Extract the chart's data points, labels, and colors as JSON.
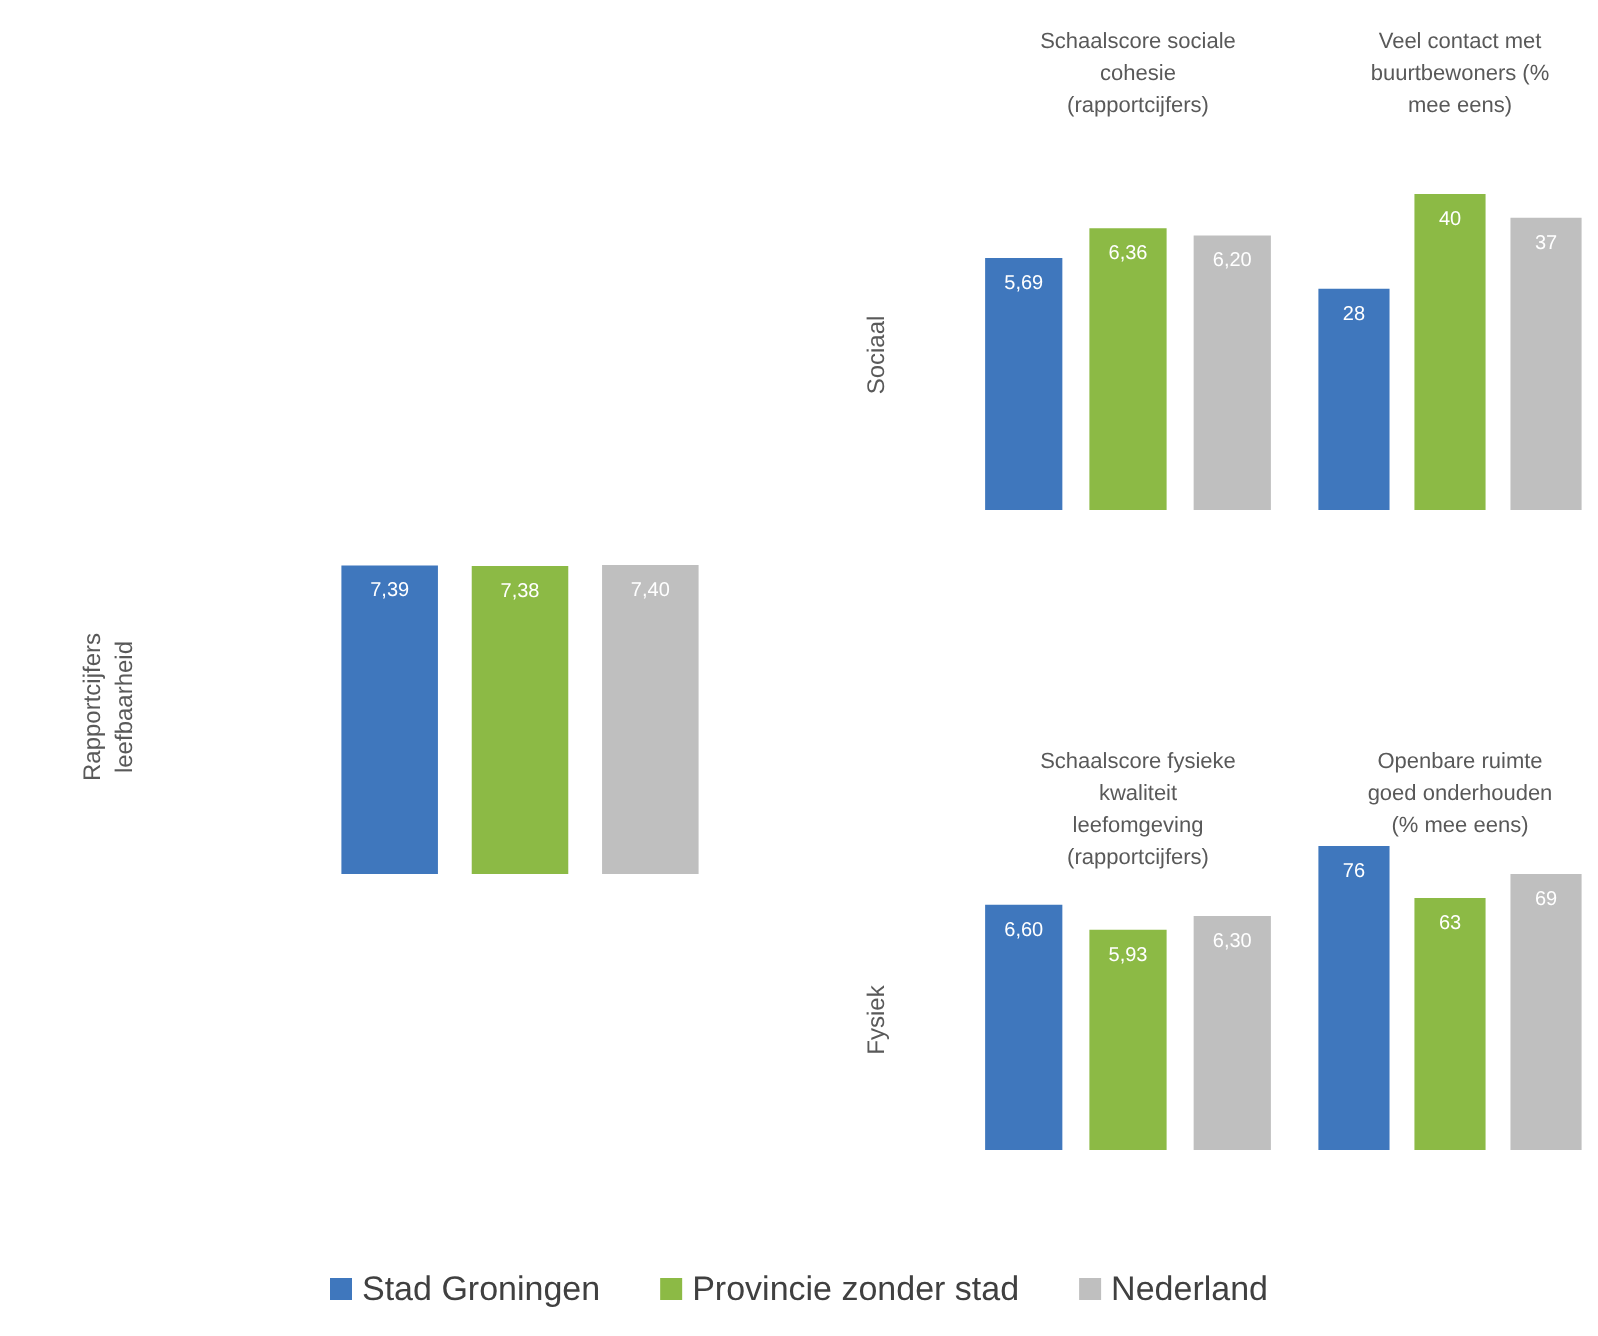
{
  "chart_data": [
    {
      "type": "bar",
      "ylabel": "Rapportcijfers leefbaarheid",
      "categories": [
        null
      ],
      "tick_labels": false,
      "grid": false,
      "legend": "bottom",
      "series": [
        {
          "name": "Stad Groningen",
          "color": "#3f77bd",
          "values": [
            7.39
          ],
          "value_labels": [
            "7,39"
          ]
        },
        {
          "name": "Provincie zonder stad",
          "color": "#8cba45",
          "values": [
            7.38
          ],
          "value_labels": [
            "7,38"
          ]
        },
        {
          "name": "Nederland",
          "color": "#bfbfbf",
          "values": [
            7.4
          ],
          "value_labels": [
            "7,40"
          ]
        }
      ]
    },
    {
      "type": "bar",
      "title": "Schaalscore sociale cohesie (rapportcijfers)",
      "ylabel": "Sociaal",
      "categories": [
        null
      ],
      "tick_labels": false,
      "grid": false,
      "legend": false,
      "series": [
        {
          "color": "#3f77bd",
          "values": [
            5.69
          ],
          "value_labels": [
            "5,69"
          ]
        },
        {
          "color": "#8cba45",
          "values": [
            6.36
          ],
          "value_labels": [
            "6,36"
          ]
        },
        {
          "color": "#bfbfbf",
          "values": [
            6.2
          ],
          "value_labels": [
            "6,20"
          ]
        }
      ]
    },
    {
      "type": "bar",
      "title": "Veel contact met buurtbewoners (% mee eens)",
      "categories": [
        null
      ],
      "tick_labels": false,
      "grid": false,
      "legend": false,
      "series": [
        {
          "color": "#3f77bd",
          "values": [
            28
          ],
          "value_labels": [
            "28"
          ]
        },
        {
          "color": "#8cba45",
          "values": [
            40
          ],
          "value_labels": [
            "40"
          ]
        },
        {
          "color": "#bfbfbf",
          "values": [
            37
          ],
          "value_labels": [
            "37"
          ]
        }
      ]
    },
    {
      "type": "bar",
      "title": "Schaalscore fysieke kwaliteit leefomgeving (rapportcijfers)",
      "ylabel": "Fysiek",
      "categories": [
        null
      ],
      "tick_labels": false,
      "grid": false,
      "legend": false,
      "series": [
        {
          "color": "#3f77bd",
          "values": [
            6.6
          ],
          "value_labels": [
            "6,60"
          ]
        },
        {
          "color": "#8cba45",
          "values": [
            5.93
          ],
          "value_labels": [
            "5,93"
          ]
        },
        {
          "color": "#bfbfbf",
          "values": [
            6.3
          ],
          "value_labels": [
            "6,30"
          ]
        }
      ]
    },
    {
      "type": "bar",
      "title": "Openbare ruimte goed onderhouden (% mee eens)",
      "categories": [
        null
      ],
      "tick_labels": false,
      "grid": false,
      "legend": false,
      "series": [
        {
          "color": "#3f77bd",
          "values": [
            76
          ],
          "value_labels": [
            "76"
          ]
        },
        {
          "color": "#8cba45",
          "values": [
            63
          ],
          "value_labels": [
            "63"
          ]
        },
        {
          "color": "#bfbfbf",
          "values": [
            69
          ],
          "value_labels": [
            "69"
          ]
        }
      ]
    }
  ]
}
